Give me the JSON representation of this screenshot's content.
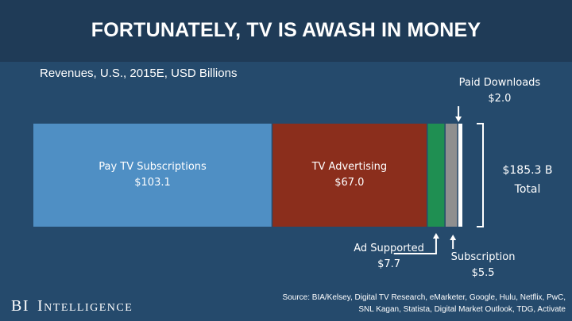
{
  "header": {
    "title": "FORTUNATELY, TV IS AWASH IN MONEY",
    "subtitle": "Revenues, U.S., 2015E, USD Billions"
  },
  "chart_data": {
    "type": "bar",
    "orientation": "horizontal-stacked",
    "title": "FORTUNATELY, TV IS AWASH IN MONEY",
    "subtitle": "Revenues, U.S., 2015E, USD Billions",
    "total_label_line1": "$185.3 B",
    "total_label_line2": "Total",
    "total": 185.3,
    "segments": [
      {
        "name": "Pay TV Subscriptions",
        "value": 103.1,
        "value_label": "$103.1",
        "color": "#4f8fc4"
      },
      {
        "name": "TV Advertising",
        "value": 67.0,
        "value_label": "$67.0",
        "color": "#8b2e1c"
      },
      {
        "name": "Ad Supported",
        "value": 7.7,
        "value_label": "$7.7",
        "color": "#1f8f52"
      },
      {
        "name": "Subscription",
        "value": 5.5,
        "value_label": "$5.5",
        "color": "#8f8f8f"
      },
      {
        "name": "Paid Downloads",
        "value": 2.0,
        "value_label": "$2.0",
        "color": "#ffffff"
      }
    ],
    "legend": "none",
    "grid": false
  },
  "footer": {
    "source_line1": "Source: BIA/Kelsey, Digital TV Research, eMarketer, Google, Hulu, Netflix, PwC,",
    "source_line2": "SNL Kagan, Statista, Digital Market Outlook, TDG, Activate",
    "brand_bi": "BI",
    "brand_name": "Intelligence"
  }
}
